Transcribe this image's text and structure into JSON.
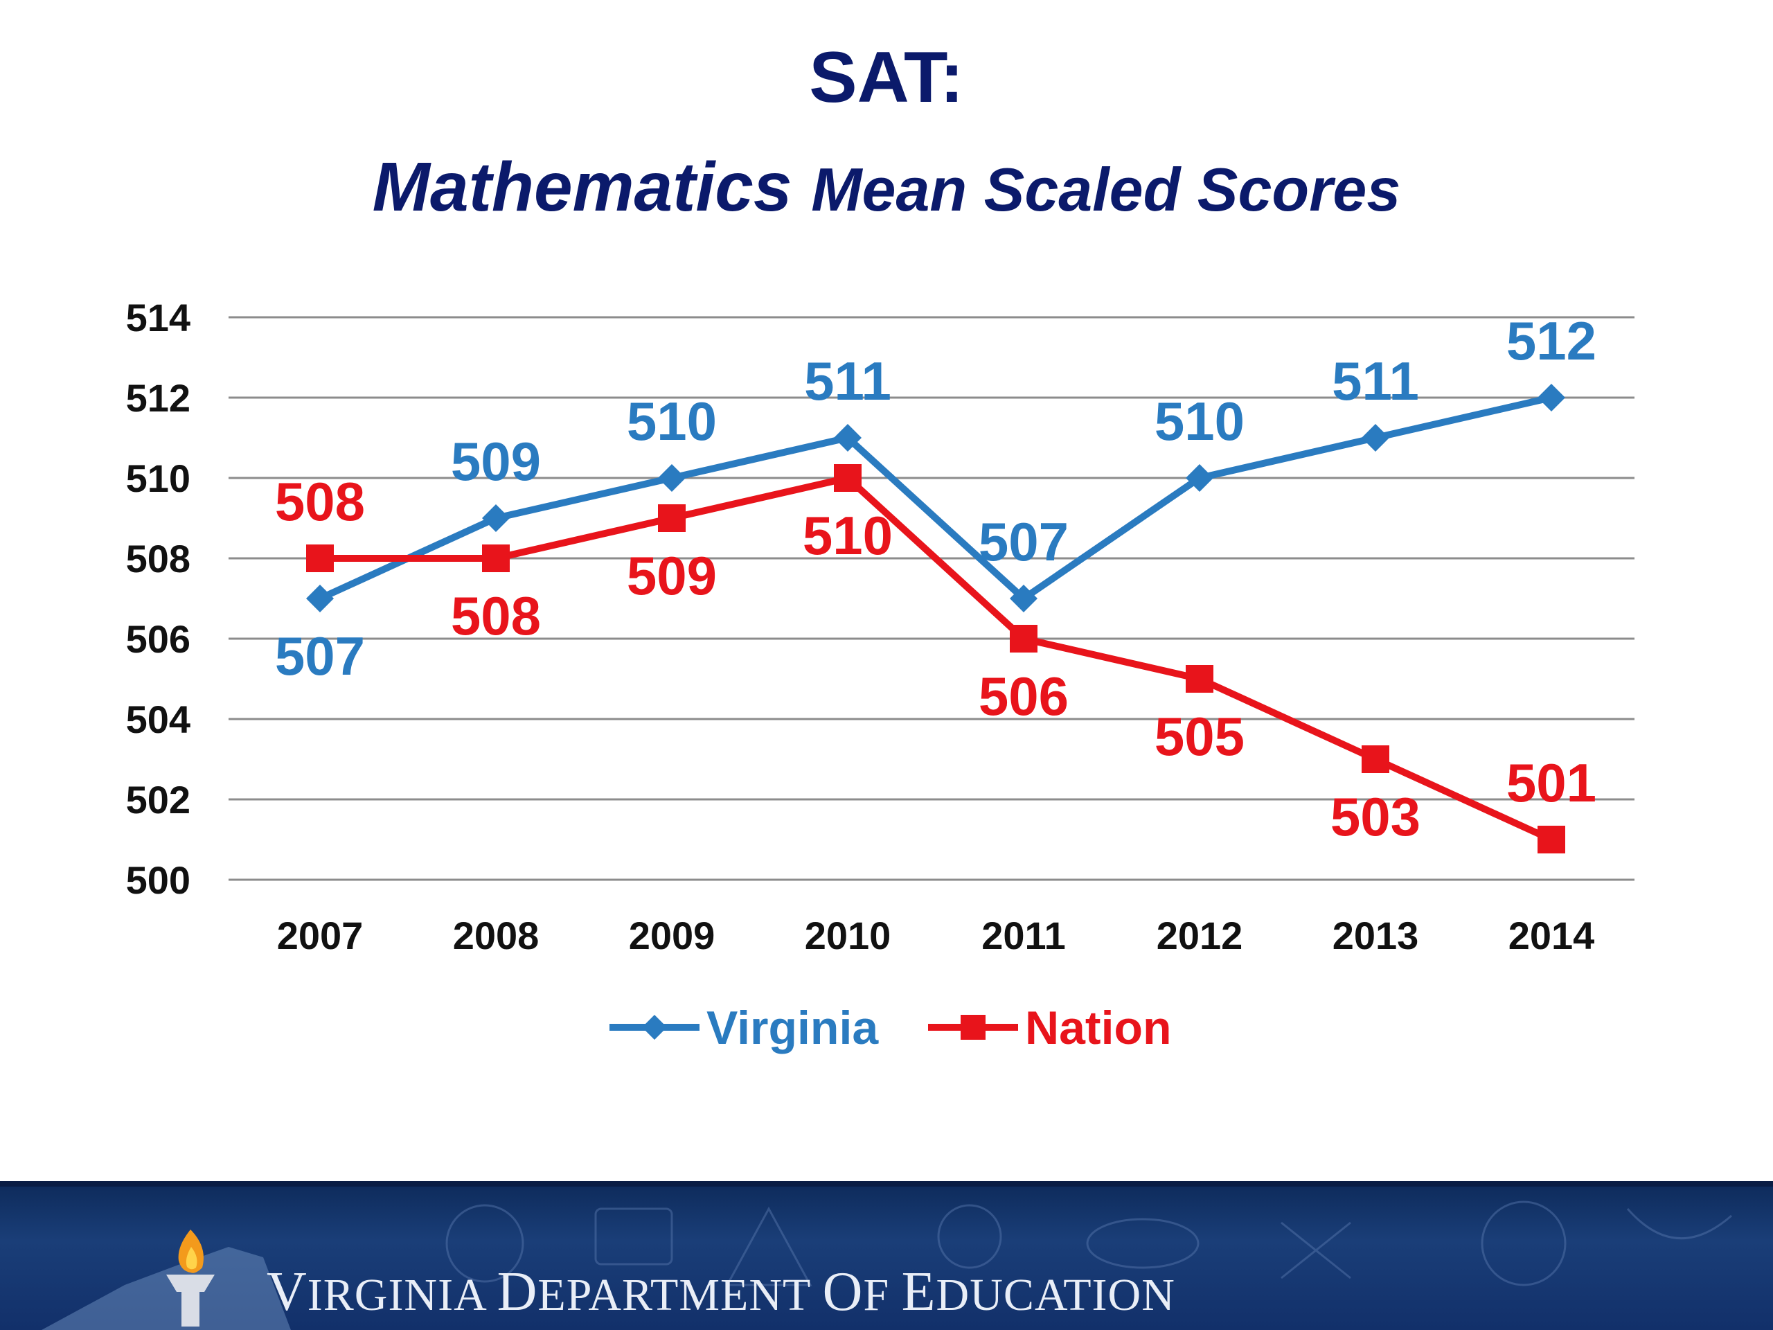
{
  "header": {
    "title": "SAT:",
    "subtitle_word": "Mathematics",
    "subtitle_rest": "Mean Scaled Scores"
  },
  "chart_data": {
    "type": "line",
    "title": "SAT: Mathematics Mean Scaled Scores",
    "xlabel": "",
    "ylabel": "",
    "categories": [
      "2007",
      "2008",
      "2009",
      "2010",
      "2011",
      "2012",
      "2013",
      "2014"
    ],
    "series": [
      {
        "name": "Virginia",
        "values": [
          507,
          509,
          510,
          511,
          507,
          510,
          511,
          512
        ],
        "color": "#2a7bc0",
        "marker": "diamond"
      },
      {
        "name": "Nation",
        "values": [
          508,
          508,
          509,
          510,
          506,
          505,
          503,
          501
        ],
        "color": "#e8141b",
        "marker": "square"
      }
    ],
    "ylim": [
      500,
      514
    ],
    "yticks": [
      500,
      502,
      504,
      506,
      508,
      510,
      512,
      514
    ],
    "grid": true,
    "legend": "bottom-center",
    "data_labels": true
  },
  "footer": {
    "org_name": "Virginia Department of Education",
    "logo": "torch-icon"
  }
}
